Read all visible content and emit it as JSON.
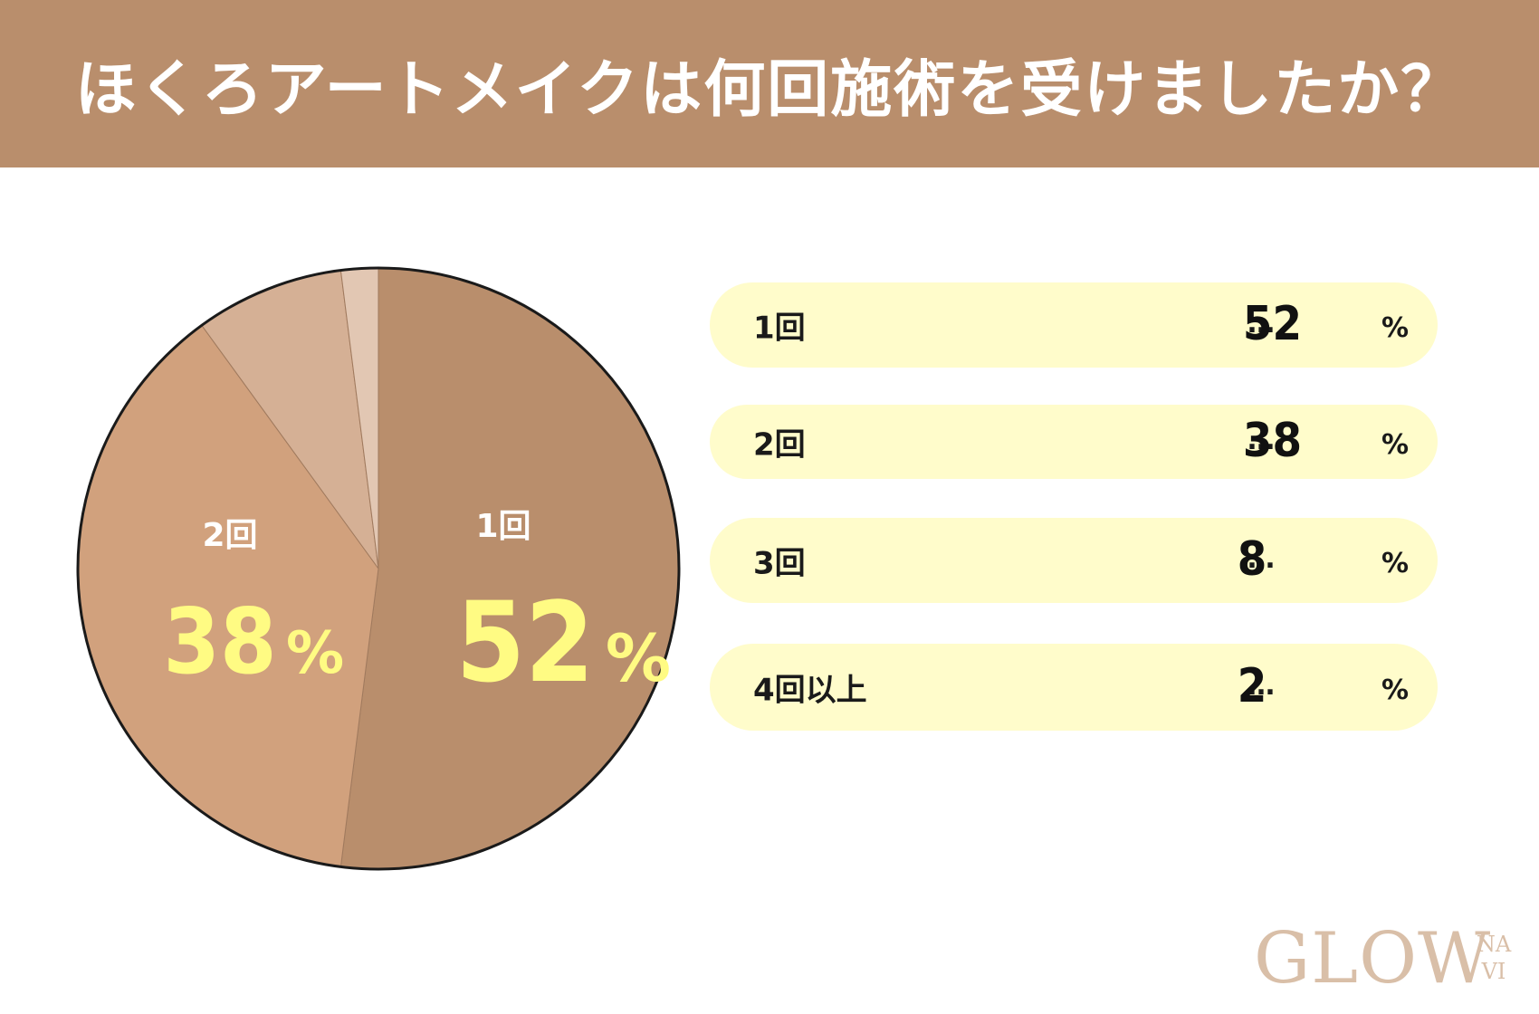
{
  "header": {
    "title": "ほくろアートメイクは何回施術を受けましたか？"
  },
  "colors": {
    "header_bg": "#b98e6c",
    "slice1": "#b98e6c",
    "slice2": "#d1a17d",
    "slice3": "#d5b095",
    "slice4": "#e2c7b3",
    "pie_label_white": "#ffffff",
    "pie_value_yellow": "#fffb83",
    "legend_bg": "#fffccb"
  },
  "chart_data": {
    "type": "pie",
    "title": "ほくろアートメイクは何回施術を受けましたか？",
    "slices": [
      {
        "label": "1回",
        "value": 52,
        "unit": "%"
      },
      {
        "label": "2回",
        "value": 38,
        "unit": "%"
      },
      {
        "label": "3回",
        "value": 8,
        "unit": "%"
      },
      {
        "label": "4回以上",
        "value": 2,
        "unit": "%"
      }
    ],
    "start_angle": "12 o'clock",
    "direction": "clockwise",
    "slice_labels_shown_for": [
      "1回",
      "2回"
    ]
  },
  "legend": {
    "dots": "…",
    "rows": [
      {
        "label": "1回",
        "value": "52",
        "unit": "%"
      },
      {
        "label": "2回",
        "value": "38",
        "unit": "%"
      },
      {
        "label": "3回",
        "value": "8",
        "unit": "%"
      },
      {
        "label": "4回以上",
        "value": "2",
        "unit": "%"
      }
    ]
  },
  "logo": {
    "main": "GLOW",
    "sub1": "NA",
    "sub2": "VI"
  }
}
